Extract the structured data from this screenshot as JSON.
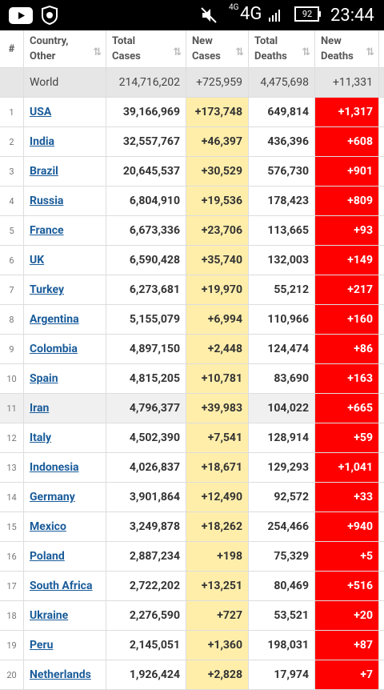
{
  "status_bar": {
    "network_small": "4G",
    "network": "4G",
    "battery": "92",
    "time": "23:44"
  },
  "table": {
    "headers": [
      "#",
      "Country, Other",
      "Total Cases",
      "New Cases",
      "Total Deaths",
      "New Deaths"
    ],
    "world": {
      "name": "World",
      "total_cases": "214,716,202",
      "new_cases": "+725,959",
      "total_deaths": "4,475,698",
      "new_deaths": "+11,331"
    },
    "rows": [
      [
        "1",
        "USA",
        "39,166,969",
        "+173,748",
        "649,814",
        "+1,317"
      ],
      [
        "2",
        "India",
        "32,557,767",
        "+46,397",
        "436,396",
        "+608"
      ],
      [
        "3",
        "Brazil",
        "20,645,537",
        "+30,529",
        "576,730",
        "+901"
      ],
      [
        "4",
        "Russia",
        "6,804,910",
        "+19,536",
        "178,423",
        "+809"
      ],
      [
        "5",
        "France",
        "6,673,336",
        "+23,706",
        "113,665",
        "+93"
      ],
      [
        "6",
        "UK",
        "6,590,428",
        "+35,740",
        "132,003",
        "+149"
      ],
      [
        "7",
        "Turkey",
        "6,273,681",
        "+19,970",
        "55,212",
        "+217"
      ],
      [
        "8",
        "Argentina",
        "5,155,079",
        "+6,994",
        "110,966",
        "+160"
      ],
      [
        "9",
        "Colombia",
        "4,897,150",
        "+2,448",
        "124,474",
        "+86"
      ],
      [
        "10",
        "Spain",
        "4,815,205",
        "+10,781",
        "83,690",
        "+163"
      ],
      [
        "11",
        "Iran",
        "4,796,377",
        "+39,983",
        "104,022",
        "+665"
      ],
      [
        "12",
        "Italy",
        "4,502,390",
        "+7,541",
        "128,914",
        "+59"
      ],
      [
        "13",
        "Indonesia",
        "4,026,837",
        "+18,671",
        "129,293",
        "+1,041"
      ],
      [
        "14",
        "Germany",
        "3,901,864",
        "+12,490",
        "92,572",
        "+33"
      ],
      [
        "15",
        "Mexico",
        "3,249,878",
        "+18,262",
        "254,466",
        "+940"
      ],
      [
        "16",
        "Poland",
        "2,887,234",
        "+198",
        "75,329",
        "+5"
      ],
      [
        "17",
        "South Africa",
        "2,722,202",
        "+13,251",
        "80,469",
        "+516"
      ],
      [
        "18",
        "Ukraine",
        "2,276,590",
        "+727",
        "53,521",
        "+20"
      ],
      [
        "19",
        "Peru",
        "2,145,051",
        "+1,360",
        "198,031",
        "+87"
      ],
      [
        "20",
        "Netherlands",
        "1,926,424",
        "+2,828",
        "17,974",
        "+7"
      ]
    ]
  }
}
